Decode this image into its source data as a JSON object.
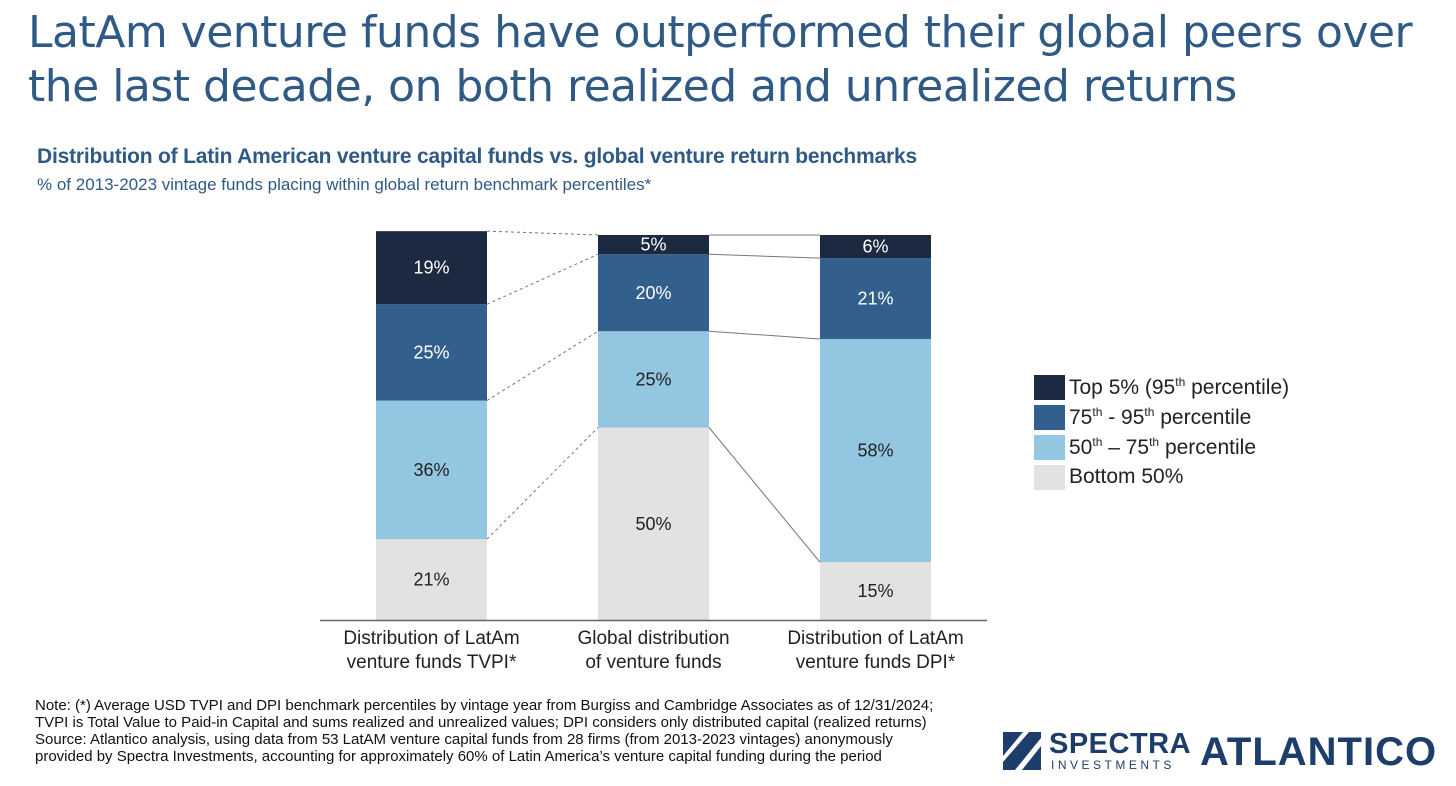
{
  "headline": "LatAm venture funds have outperformed their global peers over the last decade, on both realized and unrealized returns",
  "chart_data": {
    "type": "bar",
    "stacked": true,
    "normalized": true,
    "title": "Distribution of Latin American venture capital funds vs. global venture return benchmarks",
    "subtitle": "% of 2013-2023 vintage funds placing within global return benchmark percentiles*",
    "categories": [
      [
        "Distribution of LatAm",
        "venture funds TVPI*"
      ],
      [
        "Global distribution",
        "of venture funds"
      ],
      [
        "Distribution of LatAm",
        "venture funds DPI*"
      ]
    ],
    "series": [
      {
        "name": "Bottom 50%",
        "color": "#e2e2e2",
        "values": [
          21,
          50,
          15
        ],
        "labels": [
          "21%",
          "50%",
          "15%"
        ]
      },
      {
        "name": "50th – 75th percentile",
        "color": "#93c6e0",
        "values": [
          36,
          25,
          58
        ],
        "labels": [
          "36%",
          "25%",
          "58%"
        ]
      },
      {
        "name": "75th - 95th percentile",
        "color": "#335f8d",
        "values": [
          25,
          20,
          21
        ],
        "labels": [
          "25%",
          "20%",
          "21%"
        ]
      },
      {
        "name": "Top 5% (95th percentile)",
        "color": "#1b2a41",
        "values": [
          19,
          5,
          6
        ],
        "labels": [
          "19%",
          "5%",
          "6%"
        ]
      }
    ],
    "ylim": [
      0,
      100
    ],
    "legend_position": "right",
    "connector_lines": true
  },
  "legend": [
    {
      "color": "#1b2a41",
      "parts": [
        "Top 5% (95",
        "th",
        " percentile)"
      ]
    },
    {
      "color": "#335f8d",
      "parts": [
        "75",
        "th",
        " - 95",
        "th",
        " percentile"
      ]
    },
    {
      "color": "#93c6e0",
      "parts": [
        "50",
        "th",
        " – 75",
        "th",
        " percentile"
      ]
    },
    {
      "color": "#e2e2e2",
      "parts": [
        "Bottom 50%"
      ]
    }
  ],
  "note": [
    "Note: (*) Average USD TVPI and DPI benchmark percentiles by vintage year from Burgiss and Cambridge Associates as of 12/31/2024;",
    "TVPI is Total Value to Paid-in Capital and sums realized and unrealized values; DPI considers only distributed capital (realized returns)",
    "Source: Atlantico analysis, using data from 53 LatAM venture capital funds from 28 firms (from 2013-2023 vintages) anonymously",
    "provided by Spectra Investments, accounting for approximately 60% of Latin America’s venture capital funding during the period"
  ],
  "logos": {
    "spectra_name": "SPECTRA",
    "spectra_sub": "INVESTMENTS",
    "atlantico": "ATLANTICO"
  }
}
